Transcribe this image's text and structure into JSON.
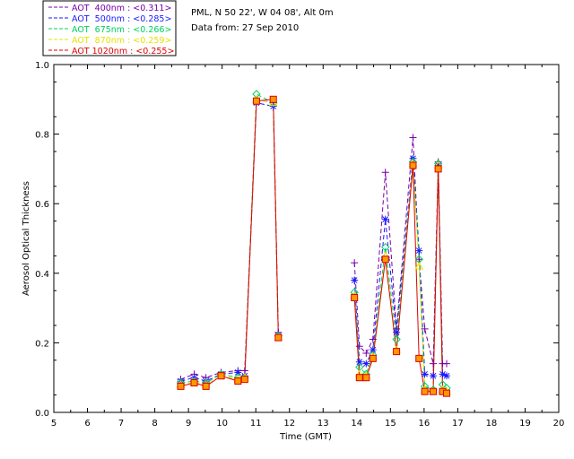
{
  "header": {
    "station": "PML, N 50 22', W 04 08', Alt 0m",
    "date_line": "Data from: 27 Sep 2010"
  },
  "chart_data": {
    "type": "scatter",
    "xlabel": "Time (GMT)",
    "ylabel": "Aerosol Optical Thickness",
    "xlim": [
      5,
      20
    ],
    "ylim": [
      0,
      1.0
    ],
    "x_ticks": [
      5,
      6,
      7,
      8,
      9,
      10,
      11,
      12,
      13,
      14,
      15,
      16,
      17,
      18,
      19,
      20
    ],
    "y_ticks": [
      0.0,
      0.2,
      0.4,
      0.6,
      0.8,
      1.0
    ],
    "y_tick_labels": [
      "0.0",
      "0.2",
      "0.4",
      "0.6",
      "0.8",
      "1.0"
    ],
    "grid": false,
    "legend_position": "top-left",
    "series": [
      {
        "name": "AOT  400nm : <0.311>",
        "color": "#7a00a8",
        "marker": "plus",
        "x": [
          8.77,
          9.17,
          9.52,
          9.97,
          10.47,
          10.67,
          11.02,
          11.52,
          11.67,
          13.93,
          14.08,
          14.28,
          14.48,
          14.85,
          15.18,
          15.67,
          15.85,
          16.02,
          16.27,
          16.42,
          16.55,
          16.67
        ],
        "y": [
          0.095,
          0.11,
          0.1,
          0.115,
          0.12,
          0.12,
          0.9,
          0.89,
          0.23,
          0.43,
          0.19,
          0.17,
          0.21,
          0.69,
          0.24,
          0.79,
          0.44,
          0.24,
          0.14,
          0.72,
          0.14,
          0.14
        ]
      },
      {
        "name": "AOT  500nm : <0.285>",
        "color": "#1a1aff",
        "marker": "asterisk",
        "x": [
          8.77,
          9.17,
          9.52,
          9.97,
          10.47,
          10.67,
          11.02,
          11.52,
          11.67,
          13.93,
          14.08,
          14.28,
          14.48,
          14.85,
          15.18,
          15.67,
          15.85,
          16.02,
          16.27,
          16.42,
          16.55,
          16.67
        ],
        "y": [
          0.09,
          0.1,
          0.09,
          0.11,
          0.115,
          0.105,
          0.89,
          0.88,
          0.22,
          0.38,
          0.145,
          0.14,
          0.18,
          0.555,
          0.23,
          0.73,
          0.465,
          0.11,
          0.105,
          0.71,
          0.11,
          0.105
        ]
      },
      {
        "name": "AOT  675nm : <0.266>",
        "color": "#00d060",
        "marker": "diamond",
        "x": [
          8.77,
          9.17,
          9.52,
          9.97,
          10.47,
          10.67,
          11.02,
          11.52,
          11.67,
          13.93,
          14.08,
          14.28,
          14.48,
          14.85,
          15.18,
          15.67,
          15.85,
          16.02,
          16.27,
          16.42,
          16.55,
          16.67
        ],
        "y": [
          0.085,
          0.09,
          0.085,
          0.11,
          0.1,
          0.1,
          0.915,
          0.89,
          0.22,
          0.345,
          0.13,
          0.11,
          0.165,
          0.475,
          0.21,
          0.72,
          0.44,
          0.075,
          0.065,
          0.715,
          0.08,
          0.07
        ]
      },
      {
        "name": "AOT  870nm : <0.259>",
        "color": "#e8e000",
        "marker": "triangle",
        "x": [
          8.77,
          9.17,
          9.52,
          9.97,
          10.47,
          10.67,
          11.02,
          11.52,
          11.67,
          13.93,
          14.08,
          14.28,
          14.48,
          14.85,
          15.18,
          15.67,
          15.85,
          16.02,
          16.27,
          16.42,
          16.55,
          16.67
        ],
        "y": [
          0.08,
          0.085,
          0.08,
          0.105,
          0.095,
          0.1,
          0.9,
          0.89,
          0.215,
          0.335,
          0.11,
          0.105,
          0.16,
          0.45,
          0.18,
          0.715,
          0.42,
          0.065,
          0.06,
          0.71,
          0.065,
          0.06
        ]
      },
      {
        "name": "AOT 1020nm : <0.255>",
        "color": "#e00000",
        "marker": "square",
        "marker_fill": "#ff9900",
        "x": [
          8.77,
          9.17,
          9.52,
          9.97,
          10.47,
          10.67,
          11.02,
          11.52,
          11.67,
          13.93,
          14.08,
          14.28,
          14.48,
          14.85,
          15.18,
          15.67,
          15.85,
          16.02,
          16.27,
          16.42,
          16.55,
          16.67
        ],
        "y": [
          0.075,
          0.085,
          0.075,
          0.105,
          0.09,
          0.095,
          0.895,
          0.9,
          0.215,
          0.33,
          0.1,
          0.1,
          0.155,
          0.44,
          0.175,
          0.71,
          0.155,
          0.06,
          0.06,
          0.7,
          0.06,
          0.055
        ]
      }
    ]
  }
}
